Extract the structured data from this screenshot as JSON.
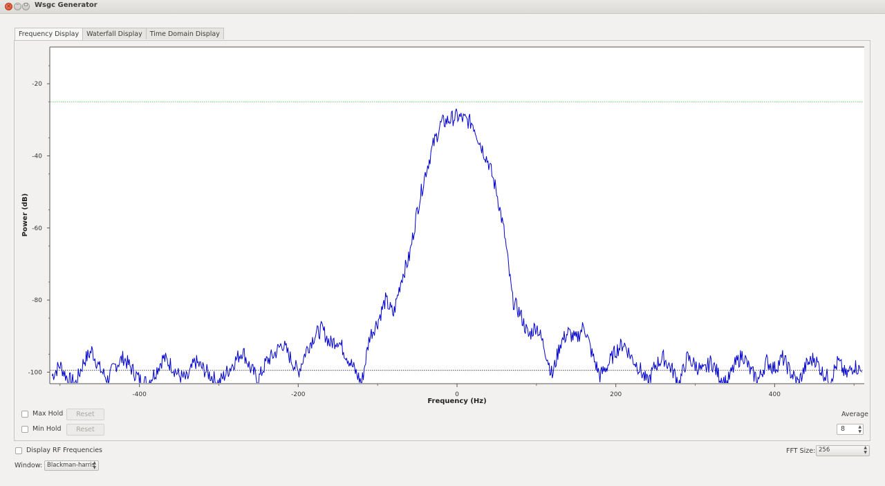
{
  "window": {
    "title": "Wsgc Generator"
  },
  "tabs": [
    {
      "label": "Frequency Display",
      "active": true
    },
    {
      "label": "Waterfall Display",
      "active": false
    },
    {
      "label": "Time Domain Display",
      "active": false
    }
  ],
  "controls": {
    "max_hold_label": "Max Hold",
    "min_hold_label": "Min Hold",
    "reset_label": "Reset",
    "average_label": "Average",
    "average_value": "8",
    "display_rf_label": "Display RF Frequencies",
    "fft_size_label": "FFT Size:",
    "fft_size_value": "256",
    "window_label": "Window:",
    "window_value": "Blackman-harris"
  },
  "colors": {
    "trace": "#0000cc",
    "threshold_upper": "#33cc33",
    "threshold_lower": "#000000"
  },
  "chart_data": {
    "type": "line",
    "title": "",
    "xlabel": "Frequency (Hz)",
    "ylabel": "Power (dB)",
    "xlim": [
      -512,
      512
    ],
    "ylim": [
      -103,
      -10
    ],
    "xticks": [
      -400,
      -200,
      0,
      200,
      400
    ],
    "xtick_labels": [
      "-400",
      "-200",
      "0",
      "200",
      "400"
    ],
    "yticks": [
      -20,
      -40,
      -60,
      -80,
      -100
    ],
    "ytick_labels": [
      "-20",
      "-40",
      "-60",
      "-80",
      "-100"
    ],
    "upper_threshold_db": -25,
    "lower_threshold_db": -99.5,
    "grid": false,
    "series": [
      {
        "x": [
          -510,
          -500,
          -490,
          -480,
          -470,
          -460,
          -450,
          -440,
          -430,
          -420,
          -410,
          -400,
          -390,
          -380,
          -370,
          -360,
          -350,
          -340,
          -330,
          -320,
          -310,
          -300,
          -290,
          -280,
          -270,
          -260,
          -250,
          -240,
          -230,
          -220,
          -210,
          -200,
          -190,
          -180,
          -170,
          -160,
          -150,
          -140,
          -130,
          -120,
          -110,
          -100,
          -90,
          -80,
          -70,
          -60,
          -50,
          -40,
          -30,
          -20,
          -10,
          0,
          10,
          20,
          30,
          40,
          50,
          60,
          70,
          80,
          90,
          100,
          110,
          120,
          130,
          140,
          150,
          160,
          170,
          180,
          190,
          200,
          210,
          220,
          230,
          240,
          250,
          260,
          270,
          280,
          290,
          300,
          310,
          320,
          330,
          340,
          350,
          360,
          370,
          380,
          390,
          400,
          410,
          420,
          430,
          440,
          450,
          460,
          470,
          480,
          490,
          500,
          510
        ],
        "y": [
          -101,
          -98,
          -102,
          -103,
          -97,
          -94,
          -99,
          -102,
          -98,
          -96,
          -99,
          -102,
          -103,
          -100,
          -96,
          -98,
          -101,
          -102,
          -97,
          -99,
          -101,
          -103,
          -100,
          -97,
          -94,
          -99,
          -102,
          -97,
          -95,
          -92,
          -96,
          -100,
          -94,
          -90,
          -88,
          -92,
          -91,
          -95,
          -99,
          -103,
          -90,
          -86,
          -80,
          -84,
          -74,
          -68,
          -55,
          -45,
          -37,
          -31,
          -30,
          -29,
          -30,
          -31,
          -37,
          -42,
          -50,
          -62,
          -80,
          -84,
          -90,
          -87,
          -93,
          -101,
          -92,
          -89,
          -91,
          -87,
          -95,
          -101,
          -98,
          -94,
          -92,
          -96,
          -99,
          -103,
          -98,
          -96,
          -99,
          -103,
          -96,
          -98,
          -100,
          -97,
          -101,
          -103,
          -98,
          -95,
          -100,
          -102,
          -97,
          -99,
          -96,
          -100,
          -103,
          -98,
          -96,
          -100,
          -102,
          -97,
          -101,
          -98,
          -100
        ]
      }
    ]
  }
}
